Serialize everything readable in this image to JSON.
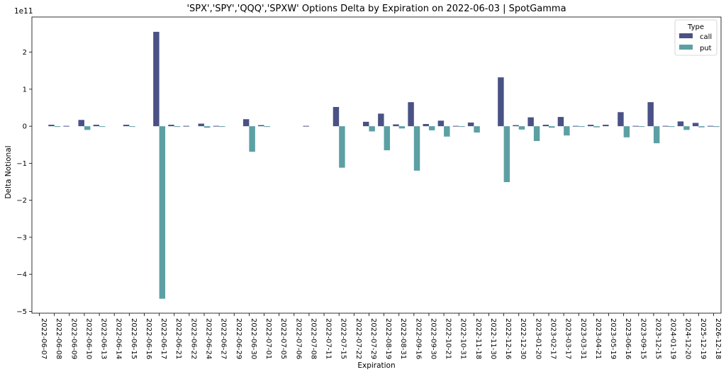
{
  "chart_data": {
    "type": "bar",
    "title": "'SPX','SPY','QQQ','SPXW' Options Delta by Expiration on 2022-06-03 | SpotGamma",
    "xlabel": "Expiration",
    "ylabel": "Delta Notional",
    "y_multiplier_label": "1e11",
    "y_unit": 100000000000.0,
    "ylim": [
      -5.05,
      2.95
    ],
    "yticks": [
      -5,
      -4,
      -3,
      -2,
      -1,
      0,
      1,
      2
    ],
    "ytick_labels": [
      "−5",
      "−4",
      "−3",
      "−2",
      "−1",
      "0",
      "1",
      "2"
    ],
    "grid": false,
    "legend": {
      "title": "Type",
      "placement": "top-right"
    },
    "categories": [
      "2022-06-07",
      "2022-06-08",
      "2022-06-09",
      "2022-06-10",
      "2022-06-13",
      "2022-06-14",
      "2022-06-15",
      "2022-06-16",
      "2022-06-17",
      "2022-06-21",
      "2022-06-22",
      "2022-06-24",
      "2022-06-27",
      "2022-06-29",
      "2022-06-30",
      "2022-07-01",
      "2022-07-05",
      "2022-07-06",
      "2022-07-08",
      "2022-07-11",
      "2022-07-15",
      "2022-07-22",
      "2022-07-29",
      "2022-08-19",
      "2022-08-31",
      "2022-09-16",
      "2022-09-30",
      "2022-10-21",
      "2022-10-31",
      "2022-11-18",
      "2022-11-30",
      "2022-12-16",
      "2022-12-30",
      "2023-01-20",
      "2023-02-17",
      "2023-03-17",
      "2023-03-31",
      "2023-04-21",
      "2023-05-19",
      "2023-06-16",
      "2023-09-15",
      "2023-12-15",
      "2024-01-19",
      "2024-12-20",
      "2025-12-19",
      "2026-12-18"
    ],
    "series": [
      {
        "name": "call",
        "color": "#4a5285",
        "values": [
          0,
          0.04,
          0.01,
          0.17,
          0.04,
          0,
          0.04,
          0,
          2.55,
          0.04,
          0.01,
          0.07,
          0.01,
          0,
          0.19,
          0.03,
          0,
          0,
          0.01,
          0,
          0.52,
          0,
          0.12,
          0.34,
          0.05,
          0.65,
          0.06,
          0.15,
          0.01,
          0.1,
          0,
          1.32,
          0.03,
          0.24,
          0.04,
          0.25,
          0.01,
          0.04,
          0.04,
          0.38,
          0.01,
          0.65,
          0.01,
          0.13,
          0.09,
          0.01
        ]
      },
      {
        "name": "put",
        "color": "#5ca0a4",
        "values": [
          0,
          -0.02,
          0,
          -0.1,
          -0.01,
          0,
          -0.01,
          0,
          -4.66,
          -0.01,
          0,
          -0.04,
          -0.01,
          0,
          -0.69,
          -0.02,
          0,
          0,
          0,
          0,
          -1.12,
          0,
          -0.14,
          -0.65,
          -0.06,
          -1.2,
          -0.11,
          -0.28,
          -0.01,
          -0.17,
          0,
          -1.51,
          -0.09,
          -0.4,
          -0.04,
          -0.25,
          -0.01,
          -0.03,
          0,
          -0.3,
          -0.01,
          -0.46,
          -0.02,
          -0.1,
          -0.03,
          -0.02
        ]
      }
    ]
  }
}
